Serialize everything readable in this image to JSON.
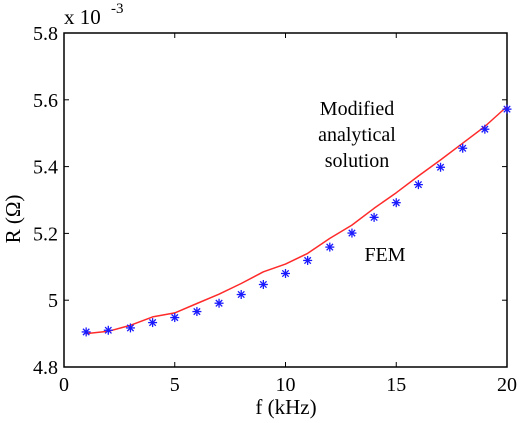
{
  "chart_data": {
    "type": "line",
    "title": "",
    "xlabel": "f (kHz)",
    "ylabel": "R (Ω)",
    "xlim": [
      0,
      20
    ],
    "ylim": [
      4.8,
      5.8
    ],
    "y_multiplier": {
      "base": "x 10",
      "exponent": "-3"
    },
    "xticks": [
      "0",
      "5",
      "10",
      "15",
      "20"
    ],
    "yticks": [
      "4.8",
      "5",
      "5.2",
      "5.4",
      "5.6",
      "5.8"
    ],
    "grid": false,
    "annotations": {
      "modified_line1": "Modified",
      "modified_line2": "analytical",
      "modified_line3": "solution",
      "fem": "FEM"
    },
    "series": [
      {
        "color": "#ff2a2a",
        "style": "line",
        "x": [
          1,
          2,
          3,
          4,
          5,
          6,
          7,
          8,
          9,
          10,
          11,
          12,
          13,
          14,
          15,
          16,
          17,
          18,
          19,
          20
        ],
        "y": [
          4.9,
          4.907,
          4.925,
          4.95,
          4.962,
          4.99,
          5.018,
          5.05,
          5.085,
          5.108,
          5.14,
          5.185,
          5.225,
          5.275,
          5.322,
          5.372,
          5.42,
          5.47,
          5.52,
          5.58
        ]
      },
      {
        "color": "#1a1aff",
        "style": "marker",
        "x": [
          1,
          2,
          3,
          4,
          5,
          6,
          7,
          8,
          9,
          10,
          11,
          12,
          13,
          14,
          15,
          16,
          17,
          18,
          19,
          20
        ],
        "y": [
          4.905,
          4.91,
          4.917,
          4.933,
          4.948,
          4.966,
          4.991,
          5.017,
          5.047,
          5.08,
          5.119,
          5.159,
          5.201,
          5.248,
          5.292,
          5.346,
          5.398,
          5.455,
          5.512,
          5.572
        ]
      }
    ]
  }
}
